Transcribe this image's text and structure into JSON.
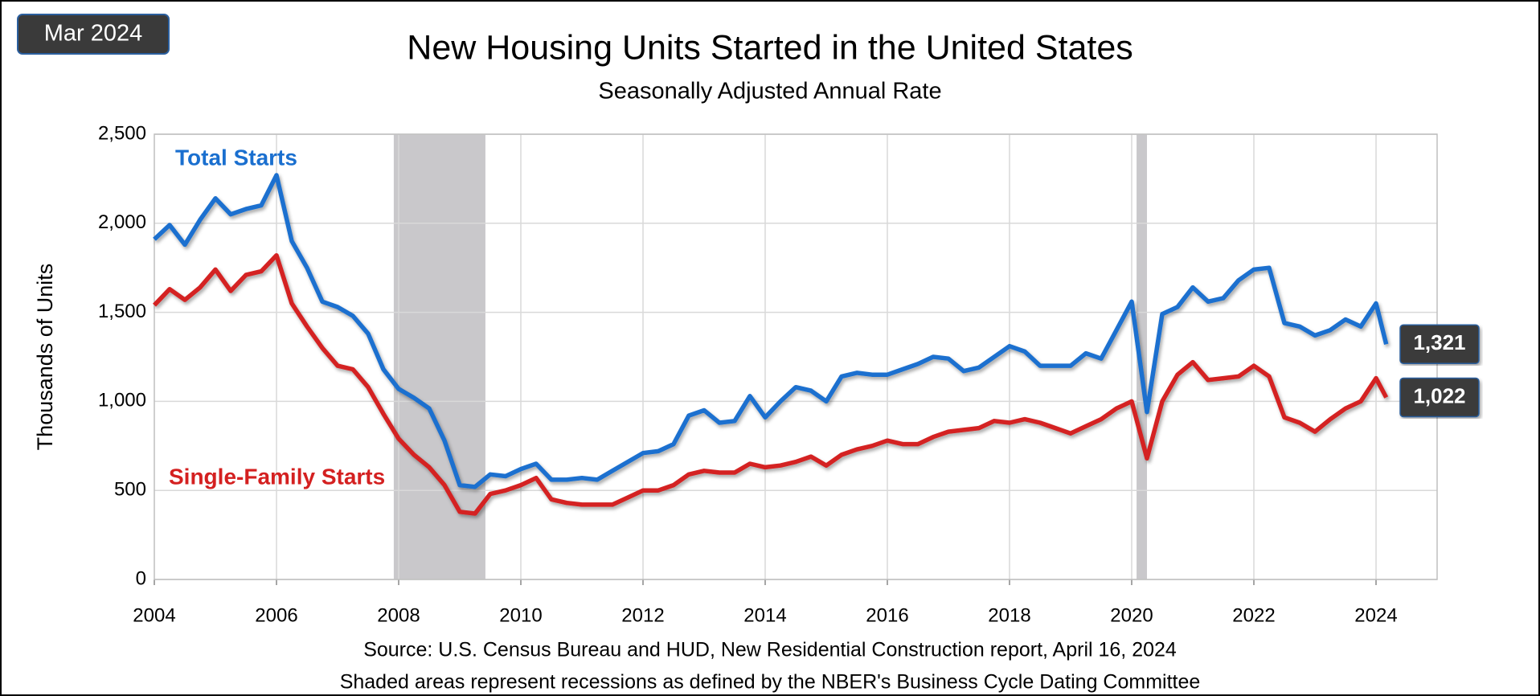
{
  "chart_data": {
    "type": "line",
    "date_badge": "Mar 2024",
    "title": "New Housing Units Started in the United States",
    "subtitle": "Seasonally Adjusted Annual Rate",
    "y_label": "Thousands of Units",
    "source": "Source:  U.S. Census Bureau and HUD, New Residential Construction report, April 16, 2024",
    "note": "Shaded areas represent recessions as defined by the NBER's Business Cycle Dating Committee",
    "xlim": [
      2004,
      2025
    ],
    "xticks": [
      2004,
      2006,
      2008,
      2010,
      2012,
      2014,
      2016,
      2018,
      2020,
      2022,
      2024
    ],
    "ylim": [
      0,
      2500
    ],
    "yticks": [
      0,
      500,
      {
        "value": 1000,
        "label": "1,000"
      },
      {
        "value": 1500,
        "label": "1,500"
      },
      {
        "value": 2000,
        "label": "2,000"
      },
      {
        "value": 2500,
        "label": "2,500"
      }
    ],
    "grid": true,
    "recessions": [
      [
        2007.92,
        2009.42
      ],
      [
        2020.08,
        2020.25
      ]
    ],
    "x": [
      2004.0,
      2004.25,
      2004.5,
      2004.75,
      2005.0,
      2005.25,
      2005.5,
      2005.75,
      2006.0,
      2006.25,
      2006.5,
      2006.75,
      2007.0,
      2007.25,
      2007.5,
      2007.75,
      2008.0,
      2008.25,
      2008.5,
      2008.75,
      2009.0,
      2009.25,
      2009.5,
      2009.75,
      2010.0,
      2010.25,
      2010.5,
      2010.75,
      2011.0,
      2011.25,
      2011.5,
      2011.75,
      2012.0,
      2012.25,
      2012.5,
      2012.75,
      2013.0,
      2013.25,
      2013.5,
      2013.75,
      2014.0,
      2014.25,
      2014.5,
      2014.75,
      2015.0,
      2015.25,
      2015.5,
      2015.75,
      2016.0,
      2016.25,
      2016.5,
      2016.75,
      2017.0,
      2017.25,
      2017.5,
      2017.75,
      2018.0,
      2018.25,
      2018.5,
      2018.75,
      2019.0,
      2019.25,
      2019.5,
      2019.75,
      2020.0,
      2020.25,
      2020.5,
      2020.75,
      2021.0,
      2021.25,
      2021.5,
      2021.75,
      2022.0,
      2022.25,
      2022.5,
      2022.75,
      2023.0,
      2023.25,
      2023.5,
      2023.75,
      2024.0,
      2024.167
    ],
    "series": [
      {
        "name": "Total Starts",
        "color": "#1a6fcf",
        "end_label": "1,321",
        "values": [
          1910,
          1990,
          1880,
          2020,
          2140,
          2050,
          2080,
          2100,
          2270,
          1900,
          1750,
          1560,
          1530,
          1480,
          1380,
          1180,
          1070,
          1020,
          960,
          780,
          530,
          520,
          590,
          580,
          620,
          650,
          560,
          560,
          570,
          560,
          610,
          660,
          710,
          720,
          760,
          920,
          950,
          880,
          890,
          1030,
          910,
          1000,
          1080,
          1060,
          1000,
          1140,
          1160,
          1150,
          1150,
          1180,
          1210,
          1250,
          1240,
          1170,
          1190,
          1250,
          1310,
          1280,
          1200,
          1200,
          1200,
          1270,
          1240,
          1400,
          1560,
          940,
          1490,
          1530,
          1640,
          1560,
          1580,
          1680,
          1740,
          1750,
          1440,
          1420,
          1370,
          1400,
          1460,
          1420,
          1550,
          1321
        ]
      },
      {
        "name": "Single-Family Starts",
        "color": "#d42020",
        "end_label": "1,022",
        "values": [
          1540,
          1630,
          1570,
          1640,
          1740,
          1620,
          1710,
          1730,
          1820,
          1550,
          1420,
          1300,
          1200,
          1180,
          1080,
          930,
          790,
          700,
          630,
          530,
          380,
          370,
          480,
          500,
          530,
          570,
          450,
          430,
          420,
          420,
          420,
          460,
          500,
          500,
          530,
          590,
          610,
          600,
          600,
          650,
          630,
          640,
          660,
          690,
          640,
          700,
          730,
          750,
          780,
          760,
          760,
          800,
          830,
          840,
          850,
          890,
          880,
          900,
          880,
          850,
          820,
          860,
          900,
          960,
          1000,
          680,
          1000,
          1150,
          1220,
          1120,
          1130,
          1140,
          1200,
          1140,
          910,
          880,
          830,
          900,
          960,
          1000,
          1130,
          1022
        ]
      }
    ]
  }
}
